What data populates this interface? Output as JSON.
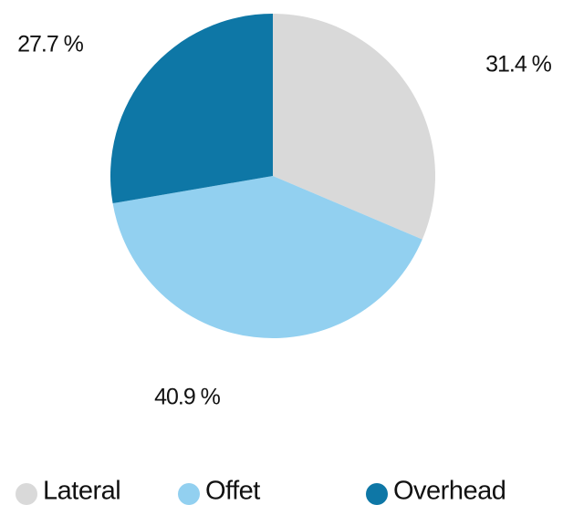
{
  "chart_data": {
    "type": "pie",
    "categories": [
      "Lateral",
      "Offet",
      "Overhead"
    ],
    "values": [
      31.4,
      40.9,
      27.7
    ],
    "value_labels": [
      "31.4 %",
      "40.9 %",
      "27.7 %"
    ],
    "colors": [
      "#d9d9d9",
      "#92d0f0",
      "#0e77a6"
    ],
    "legend": "bottom"
  }
}
